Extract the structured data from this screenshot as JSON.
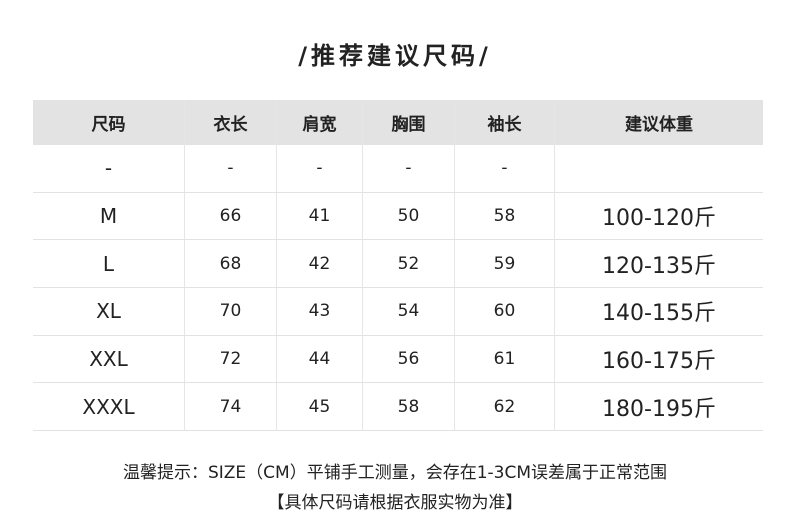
{
  "title": "/推荐建议尺码/",
  "table": {
    "headers": [
      "尺码",
      "衣长",
      "肩宽",
      "胸围",
      "袖长",
      "建议体重"
    ],
    "rows": [
      [
        "-",
        "-",
        "-",
        "-",
        "-",
        ""
      ],
      [
        "M",
        "66",
        "41",
        "50",
        "58",
        "100-120斤"
      ],
      [
        "L",
        "68",
        "42",
        "52",
        "59",
        "120-135斤"
      ],
      [
        "XL",
        "70",
        "43",
        "54",
        "60",
        "140-155斤"
      ],
      [
        "XXL",
        "72",
        "44",
        "56",
        "61",
        "160-175斤"
      ],
      [
        "XXXL",
        "74",
        "45",
        "58",
        "62",
        "180-195斤"
      ]
    ]
  },
  "notes": {
    "line1": "温馨提示：SIZE（CM）平铺手工测量，会存在1-3CM误差属于正常范围",
    "line2": "【具体尺码请根据衣服实物为准】"
  },
  "colors": {
    "header_bg": "#e3e3e3",
    "text": "#222222"
  }
}
